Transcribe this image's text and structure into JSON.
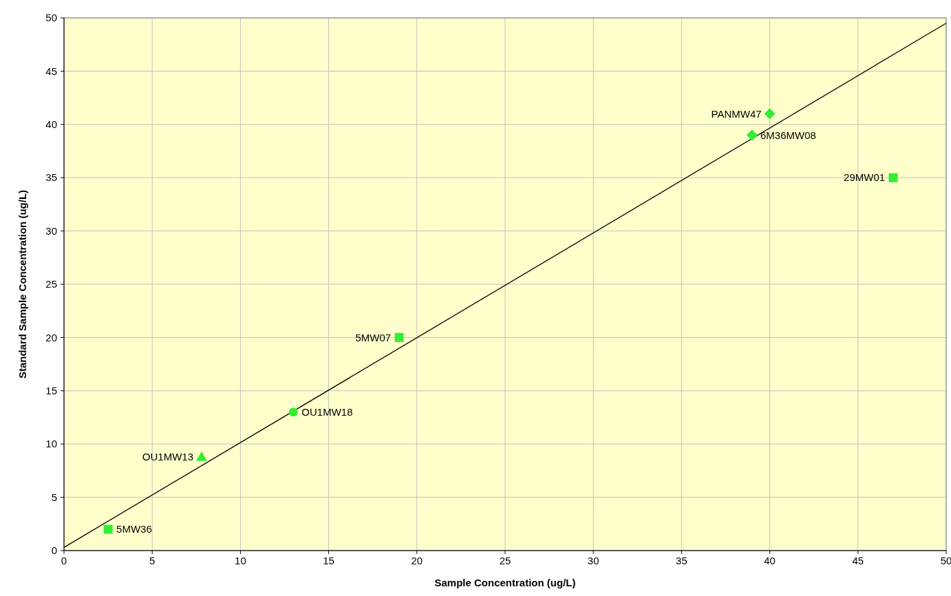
{
  "chart_data": {
    "type": "scatter",
    "xlabel": "Sample Concentration (ug/L)",
    "ylabel": "Standard Sample Concentration (ug/L)",
    "xlim": [
      0,
      50
    ],
    "ylim": [
      0,
      50
    ],
    "xticks": [
      0,
      5,
      10,
      15,
      20,
      25,
      30,
      35,
      40,
      45,
      50
    ],
    "yticks": [
      0,
      5,
      10,
      15,
      20,
      25,
      30,
      35,
      40,
      45,
      50
    ],
    "grid": true,
    "series": [
      {
        "type": "line",
        "color": "#000000",
        "x": [
          0,
          50
        ],
        "values": [
          0.3,
          49.5
        ],
        "marker": "none"
      },
      {
        "name": "5MW36",
        "color": "#33ee33",
        "x": [
          2.5
        ],
        "values": [
          2
        ],
        "marker": "square"
      },
      {
        "name": "OU1MW13",
        "color": "#33ee33",
        "x": [
          7.8
        ],
        "values": [
          8.8
        ],
        "marker": "triangle"
      },
      {
        "name": "OU1MW18",
        "color": "#33ee33",
        "x": [
          13
        ],
        "values": [
          13
        ],
        "marker": "circle"
      },
      {
        "name": "5MW07",
        "color": "#33ee33",
        "x": [
          19
        ],
        "values": [
          20
        ],
        "marker": "square"
      },
      {
        "name": "6M36MW08",
        "color": "#33ee33",
        "x": [
          39
        ],
        "values": [
          39
        ],
        "marker": "diamond"
      },
      {
        "name": "PANMW47",
        "color": "#33ee33",
        "x": [
          40
        ],
        "values": [
          41
        ],
        "marker": "diamond"
      },
      {
        "name": "29MW01",
        "color": "#33ee33",
        "x": [
          47
        ],
        "values": [
          35
        ],
        "marker": "square"
      }
    ]
  }
}
